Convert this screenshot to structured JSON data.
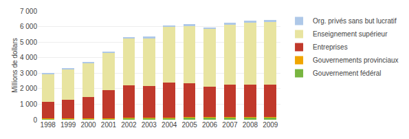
{
  "chart_data": {
    "type": "bar",
    "stacked": true,
    "categories": [
      "1998",
      "1999",
      "2000",
      "2001",
      "2002",
      "2003",
      "2004",
      "2005",
      "2006",
      "2007",
      "2008",
      "2009"
    ],
    "series": [
      {
        "name": "Gouvernement fédéral",
        "color": "#78b540",
        "values": [
          50,
          55,
          60,
          80,
          100,
          100,
          130,
          140,
          155,
          165,
          165,
          165
        ]
      },
      {
        "name": "Gouvernements provinciaux",
        "color": "#f0a500",
        "values": [
          20,
          20,
          20,
          20,
          20,
          20,
          20,
          20,
          20,
          20,
          20,
          20
        ]
      },
      {
        "name": "Entreprises",
        "color": "#c0392b",
        "values": [
          1080,
          1220,
          1370,
          1820,
          2080,
          2040,
          2260,
          2200,
          1960,
          2060,
          2090,
          2090
        ]
      },
      {
        "name": "Enseignement supérieur",
        "color": "#e8e4a0",
        "values": [
          1780,
          1960,
          2190,
          2420,
          3020,
          3070,
          3550,
          3660,
          3720,
          3880,
          3980,
          4020
        ]
      },
      {
        "name": "Org. privés sans but lucratif",
        "color": "#aec8e8",
        "values": [
          55,
          55,
          55,
          65,
          105,
          110,
          110,
          130,
          80,
          135,
          135,
          140
        ]
      }
    ],
    "ylabel": "Millions de dollars",
    "ylim": [
      0,
      7000
    ],
    "yticks": [
      0,
      {
        "value": 1000,
        "label": "1 000"
      },
      {
        "value": 2000,
        "label": "2 000"
      },
      {
        "value": 3000,
        "label": "3 000"
      },
      {
        "value": 4000,
        "label": "4 000"
      },
      {
        "value": 5000,
        "label": "5 000"
      },
      {
        "value": 6000,
        "label": "6 000"
      },
      {
        "value": 7000,
        "label": "7 000"
      }
    ],
    "grid": true,
    "legend": "right"
  }
}
